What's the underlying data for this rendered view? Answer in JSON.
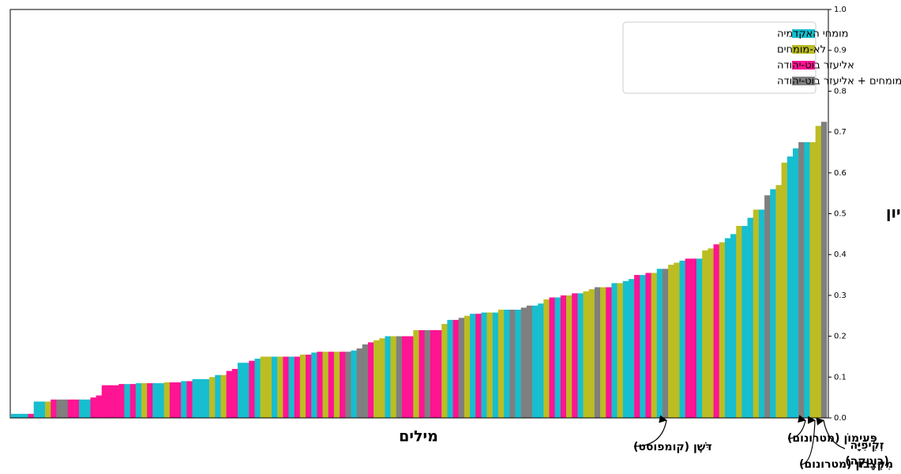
{
  "chart_data": {
    "type": "bar",
    "ylabel": "ציון",
    "xlabel": "מילים",
    "ylim": [
      0,
      1.0
    ],
    "yticks": [
      "0.0",
      "0.1",
      "0.2",
      "0.3",
      "0.4",
      "0.5",
      "0.6",
      "0.7",
      "0.8",
      "0.9",
      "1.0"
    ],
    "y_axis_side": "right",
    "grid": false,
    "legend_position": "top-right",
    "colors": {
      "experts": "#17becf",
      "nonexperts": "#bcbd22",
      "bot": "#ff1493",
      "combined": "#7f7f7f"
    },
    "legend": [
      {
        "key": "experts",
        "label": "מומחי האקדמיה"
      },
      {
        "key": "nonexperts",
        "label": "לא-מומחים"
      },
      {
        "key": "bot",
        "label": "אליעזר בוט-יהודה"
      },
      {
        "key": "combined",
        "label": "לא-מומחים + אליעזר בוט-יהודה"
      }
    ],
    "bars": [
      {
        "g": "experts",
        "v": 0.01
      },
      {
        "g": "experts",
        "v": 0.01
      },
      {
        "g": "experts",
        "v": 0.01
      },
      {
        "g": "bot",
        "v": 0.01
      },
      {
        "g": "experts",
        "v": 0.04
      },
      {
        "g": "experts",
        "v": 0.04
      },
      {
        "g": "nonexperts",
        "v": 0.04
      },
      {
        "g": "bot",
        "v": 0.045
      },
      {
        "g": "combined",
        "v": 0.045
      },
      {
        "g": "combined",
        "v": 0.045
      },
      {
        "g": "bot",
        "v": 0.045
      },
      {
        "g": "bot",
        "v": 0.045
      },
      {
        "g": "experts",
        "v": 0.045
      },
      {
        "g": "experts",
        "v": 0.045
      },
      {
        "g": "bot",
        "v": 0.05
      },
      {
        "g": "bot",
        "v": 0.055
      },
      {
        "g": "bot",
        "v": 0.08
      },
      {
        "g": "bot",
        "v": 0.08
      },
      {
        "g": "bot",
        "v": 0.08
      },
      {
        "g": "bot",
        "v": 0.083
      },
      {
        "g": "experts",
        "v": 0.083
      },
      {
        "g": "bot",
        "v": 0.083
      },
      {
        "g": "experts",
        "v": 0.085
      },
      {
        "g": "nonexperts",
        "v": 0.085
      },
      {
        "g": "bot",
        "v": 0.085
      },
      {
        "g": "experts",
        "v": 0.085
      },
      {
        "g": "experts",
        "v": 0.085
      },
      {
        "g": "nonexperts",
        "v": 0.087
      },
      {
        "g": "bot",
        "v": 0.087
      },
      {
        "g": "bot",
        "v": 0.087
      },
      {
        "g": "experts",
        "v": 0.09
      },
      {
        "g": "bot",
        "v": 0.09
      },
      {
        "g": "experts",
        "v": 0.095
      },
      {
        "g": "experts",
        "v": 0.095
      },
      {
        "g": "experts",
        "v": 0.095
      },
      {
        "g": "nonexperts",
        "v": 0.1
      },
      {
        "g": "experts",
        "v": 0.105
      },
      {
        "g": "nonexperts",
        "v": 0.105
      },
      {
        "g": "bot",
        "v": 0.115
      },
      {
        "g": "bot",
        "v": 0.12
      },
      {
        "g": "experts",
        "v": 0.135
      },
      {
        "g": "experts",
        "v": 0.135
      },
      {
        "g": "bot",
        "v": 0.14
      },
      {
        "g": "experts",
        "v": 0.145
      },
      {
        "g": "nonexperts",
        "v": 0.15
      },
      {
        "g": "nonexperts",
        "v": 0.15
      },
      {
        "g": "experts",
        "v": 0.15
      },
      {
        "g": "nonexperts",
        "v": 0.15
      },
      {
        "g": "bot",
        "v": 0.15
      },
      {
        "g": "experts",
        "v": 0.15
      },
      {
        "g": "bot",
        "v": 0.15
      },
      {
        "g": "nonexperts",
        "v": 0.155
      },
      {
        "g": "bot",
        "v": 0.155
      },
      {
        "g": "experts",
        "v": 0.16
      },
      {
        "g": "bot",
        "v": 0.162
      },
      {
        "g": "nonexperts",
        "v": 0.162
      },
      {
        "g": "bot",
        "v": 0.162
      },
      {
        "g": "nonexperts",
        "v": 0.162
      },
      {
        "g": "bot",
        "v": 0.162
      },
      {
        "g": "combined",
        "v": 0.162
      },
      {
        "g": "experts",
        "v": 0.165
      },
      {
        "g": "combined",
        "v": 0.17
      },
      {
        "g": "combined",
        "v": 0.18
      },
      {
        "g": "bot",
        "v": 0.185
      },
      {
        "g": "nonexperts",
        "v": 0.19
      },
      {
        "g": "nonexperts",
        "v": 0.195
      },
      {
        "g": "experts",
        "v": 0.2
      },
      {
        "g": "nonexperts",
        "v": 0.2
      },
      {
        "g": "combined",
        "v": 0.2
      },
      {
        "g": "bot",
        "v": 0.2
      },
      {
        "g": "bot",
        "v": 0.2
      },
      {
        "g": "nonexperts",
        "v": 0.215
      },
      {
        "g": "bot",
        "v": 0.215
      },
      {
        "g": "combined",
        "v": 0.215
      },
      {
        "g": "bot",
        "v": 0.215
      },
      {
        "g": "bot",
        "v": 0.215
      },
      {
        "g": "nonexperts",
        "v": 0.23
      },
      {
        "g": "experts",
        "v": 0.24
      },
      {
        "g": "bot",
        "v": 0.24
      },
      {
        "g": "combined",
        "v": 0.245
      },
      {
        "g": "nonexperts",
        "v": 0.25
      },
      {
        "g": "experts",
        "v": 0.255
      },
      {
        "g": "bot",
        "v": 0.255
      },
      {
        "g": "experts",
        "v": 0.258
      },
      {
        "g": "nonexperts",
        "v": 0.258
      },
      {
        "g": "experts",
        "v": 0.258
      },
      {
        "g": "nonexperts",
        "v": 0.265
      },
      {
        "g": "experts",
        "v": 0.265
      },
      {
        "g": "combined",
        "v": 0.265
      },
      {
        "g": "experts",
        "v": 0.265
      },
      {
        "g": "combined",
        "v": 0.27
      },
      {
        "g": "combined",
        "v": 0.275
      },
      {
        "g": "experts",
        "v": 0.275
      },
      {
        "g": "experts",
        "v": 0.28
      },
      {
        "g": "nonexperts",
        "v": 0.29
      },
      {
        "g": "bot",
        "v": 0.295
      },
      {
        "g": "experts",
        "v": 0.295
      },
      {
        "g": "bot",
        "v": 0.3
      },
      {
        "g": "nonexperts",
        "v": 0.3
      },
      {
        "g": "bot",
        "v": 0.305
      },
      {
        "g": "experts",
        "v": 0.305
      },
      {
        "g": "nonexperts",
        "v": 0.31
      },
      {
        "g": "nonexperts",
        "v": 0.315
      },
      {
        "g": "combined",
        "v": 0.32
      },
      {
        "g": "nonexperts",
        "v": 0.32
      },
      {
        "g": "bot",
        "v": 0.32
      },
      {
        "g": "experts",
        "v": 0.33
      },
      {
        "g": "nonexperts",
        "v": 0.33
      },
      {
        "g": "experts",
        "v": 0.335
      },
      {
        "g": "experts",
        "v": 0.34
      },
      {
        "g": "bot",
        "v": 0.35
      },
      {
        "g": "experts",
        "v": 0.35
      },
      {
        "g": "bot",
        "v": 0.355
      },
      {
        "g": "nonexperts",
        "v": 0.355
      },
      {
        "g": "experts",
        "v": 0.365
      },
      {
        "g": "combined",
        "v": 0.365
      },
      {
        "g": "nonexperts",
        "v": 0.375
      },
      {
        "g": "nonexperts",
        "v": 0.38
      },
      {
        "g": "experts",
        "v": 0.385
      },
      {
        "g": "bot",
        "v": 0.39
      },
      {
        "g": "bot",
        "v": 0.39
      },
      {
        "g": "experts",
        "v": 0.39
      },
      {
        "g": "nonexperts",
        "v": 0.41
      },
      {
        "g": "nonexperts",
        "v": 0.415
      },
      {
        "g": "bot",
        "v": 0.425
      },
      {
        "g": "nonexperts",
        "v": 0.43
      },
      {
        "g": "experts",
        "v": 0.44
      },
      {
        "g": "experts",
        "v": 0.45
      },
      {
        "g": "nonexperts",
        "v": 0.47
      },
      {
        "g": "experts",
        "v": 0.47
      },
      {
        "g": "experts",
        "v": 0.49
      },
      {
        "g": "nonexperts",
        "v": 0.51
      },
      {
        "g": "experts",
        "v": 0.51
      },
      {
        "g": "combined",
        "v": 0.545
      },
      {
        "g": "experts",
        "v": 0.56
      },
      {
        "g": "nonexperts",
        "v": 0.57
      },
      {
        "g": "nonexperts",
        "v": 0.625
      },
      {
        "g": "experts",
        "v": 0.64
      },
      {
        "g": "experts",
        "v": 0.66
      },
      {
        "g": "combined",
        "v": 0.675
      },
      {
        "g": "experts",
        "v": 0.675
      },
      {
        "g": "nonexperts",
        "v": 0.675
      },
      {
        "g": "nonexperts",
        "v": 0.715
      },
      {
        "g": "combined",
        "v": 0.725
      }
    ],
    "annotations": [
      {
        "lines": [
          "דֹּשֶׁן (קומפוסט)"
        ]
      },
      {
        "lines": [
          "פְּעִימוֹן (מטרונום)"
        ]
      },
      {
        "lines": [
          "מִקְצָבוֹן (מטרונום)"
        ]
      },
      {
        "lines": [
          "זְקִיפִיָּה",
          "(בוטקה)"
        ]
      }
    ]
  }
}
